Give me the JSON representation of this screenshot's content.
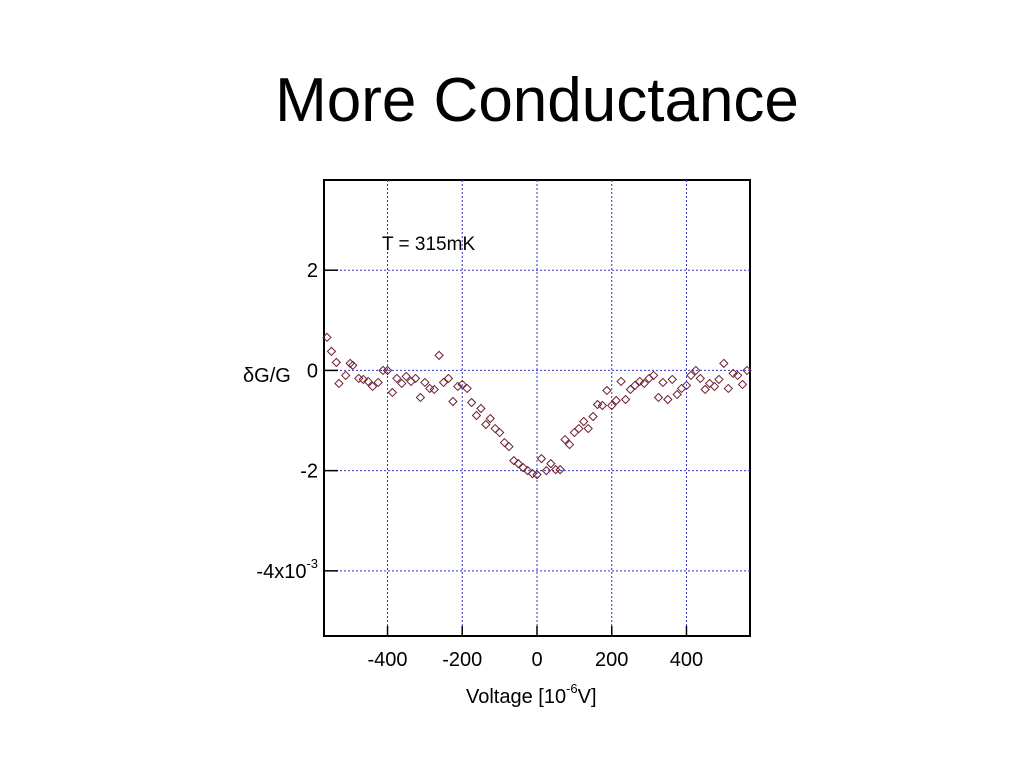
{
  "slide": {
    "title": "More Conductance"
  },
  "chart_data": {
    "type": "scatter",
    "title": "",
    "annotation": "T = 315mK",
    "xlabel": {
      "prefix": "Voltage [10",
      "exponent": "-6",
      "suffix": "V]"
    },
    "ylabel": "δG/G",
    "xlim": [
      -570,
      570
    ],
    "ylim": [
      -0.0053,
      0.0038
    ],
    "x_ticks": [
      {
        "value": -400,
        "label": "-400"
      },
      {
        "value": -200,
        "label": "-200"
      },
      {
        "value": 0,
        "label": "0"
      },
      {
        "value": 200,
        "label": "200"
      },
      {
        "value": 400,
        "label": "400"
      }
    ],
    "y_ticks": [
      {
        "value": 0.002,
        "label": "2"
      },
      {
        "value": 0,
        "label": "0"
      },
      {
        "value": -0.002,
        "label": "-2"
      },
      {
        "value": -0.004,
        "label": "-4x10",
        "exponent": "-3"
      }
    ],
    "grid": true,
    "grid_color": "#3333cc",
    "marker": "diamond-open",
    "marker_color": "#6b1f2e",
    "points": [
      [
        -562,
        0.00066
      ],
      [
        -550,
        0.00038
      ],
      [
        -537,
        0.00016
      ],
      [
        -530,
        -0.00026
      ],
      [
        -512,
        -0.0001
      ],
      [
        -500,
        0.00014
      ],
      [
        -493,
        0.0001
      ],
      [
        -477,
        -0.00016
      ],
      [
        -465,
        -0.00018
      ],
      [
        -452,
        -0.00022
      ],
      [
        -440,
        -0.00032
      ],
      [
        -425,
        -0.00024
      ],
      [
        -412,
        0.0
      ],
      [
        -400,
        0.0
      ],
      [
        -387,
        -0.00044
      ],
      [
        -375,
        -0.00016
      ],
      [
        -362,
        -0.00026
      ],
      [
        -350,
        -0.00012
      ],
      [
        -337,
        -0.00022
      ],
      [
        -325,
        -0.00016
      ],
      [
        -312,
        -0.00054
      ],
      [
        -300,
        -0.00024
      ],
      [
        -287,
        -0.00036
      ],
      [
        -275,
        -0.00038
      ],
      [
        -262,
        0.0003
      ],
      [
        -250,
        -0.00024
      ],
      [
        -237,
        -0.00016
      ],
      [
        -225,
        -0.00062
      ],
      [
        -212,
        -0.00032
      ],
      [
        -200,
        -0.00028
      ],
      [
        -187,
        -0.00036
      ],
      [
        -175,
        -0.00064
      ],
      [
        -162,
        -0.0009
      ],
      [
        -150,
        -0.00076
      ],
      [
        -137,
        -0.00108
      ],
      [
        -125,
        -0.00096
      ],
      [
        -112,
        -0.00116
      ],
      [
        -100,
        -0.00124
      ],
      [
        -87,
        -0.00144
      ],
      [
        -75,
        -0.00152
      ],
      [
        -62,
        -0.0018
      ],
      [
        -50,
        -0.00186
      ],
      [
        -37,
        -0.00194
      ],
      [
        -25,
        -0.002
      ],
      [
        -12,
        -0.00206
      ],
      [
        0,
        -0.00208
      ],
      [
        12,
        -0.00176
      ],
      [
        25,
        -0.002
      ],
      [
        37,
        -0.00186
      ],
      [
        50,
        -0.00198
      ],
      [
        62,
        -0.00198
      ],
      [
        75,
        -0.00138
      ],
      [
        87,
        -0.00148
      ],
      [
        100,
        -0.00124
      ],
      [
        112,
        -0.00116
      ],
      [
        125,
        -0.00102
      ],
      [
        137,
        -0.00116
      ],
      [
        150,
        -0.00092
      ],
      [
        162,
        -0.00068
      ],
      [
        175,
        -0.0007
      ],
      [
        187,
        -0.0004
      ],
      [
        200,
        -0.0007
      ],
      [
        212,
        -0.0006
      ],
      [
        225,
        -0.00022
      ],
      [
        237,
        -0.00058
      ],
      [
        250,
        -0.00038
      ],
      [
        262,
        -0.0003
      ],
      [
        275,
        -0.00022
      ],
      [
        287,
        -0.00026
      ],
      [
        300,
        -0.00016
      ],
      [
        312,
        -0.0001
      ],
      [
        325,
        -0.00054
      ],
      [
        337,
        -0.00024
      ],
      [
        350,
        -0.00058
      ],
      [
        362,
        -0.00018
      ],
      [
        375,
        -0.00048
      ],
      [
        387,
        -0.00036
      ],
      [
        400,
        -0.0003
      ],
      [
        412,
        -0.0001
      ],
      [
        425,
        0.0
      ],
      [
        437,
        -0.00016
      ],
      [
        450,
        -0.00038
      ],
      [
        462,
        -0.00026
      ],
      [
        475,
        -0.00032
      ],
      [
        487,
        -0.00018
      ],
      [
        500,
        0.00014
      ],
      [
        512,
        -0.00036
      ],
      [
        525,
        -6e-05
      ],
      [
        537,
        -0.0001
      ],
      [
        550,
        -0.00028
      ],
      [
        562,
        0.0
      ]
    ]
  }
}
